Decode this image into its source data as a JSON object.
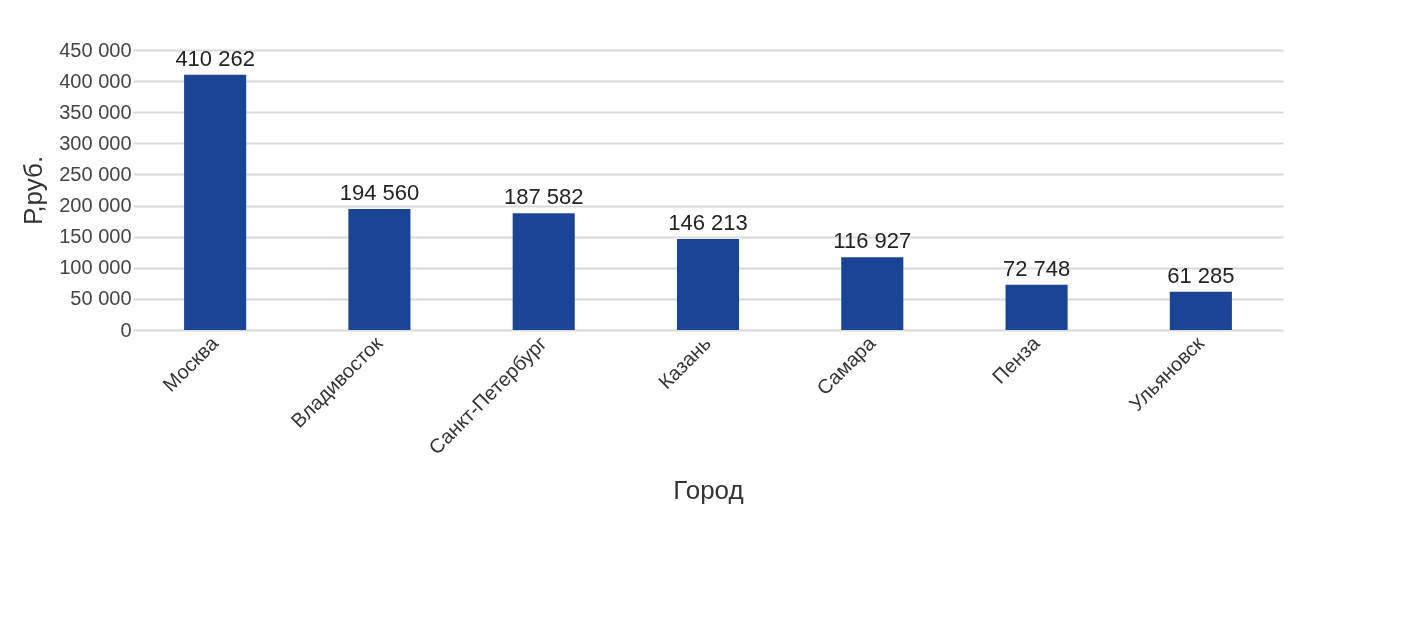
{
  "chart_data": {
    "type": "bar",
    "xlabel": "Город",
    "ylabel": "Р,руб.",
    "categories": [
      "Москва",
      "Владивосток",
      "Санкт-Петербург",
      "Казань",
      "Самара",
      "Пенза",
      "Ульяновск"
    ],
    "values": [
      410262,
      194560,
      187582,
      146213,
      116927,
      72748,
      61285
    ],
    "color": "#1a4494",
    "ylim": [
      0,
      450000
    ],
    "yticks": [
      0,
      50000,
      100000,
      150000,
      200000,
      250000,
      300000,
      350000,
      400000,
      450000
    ],
    "grid": "y",
    "data_labels": true
  }
}
